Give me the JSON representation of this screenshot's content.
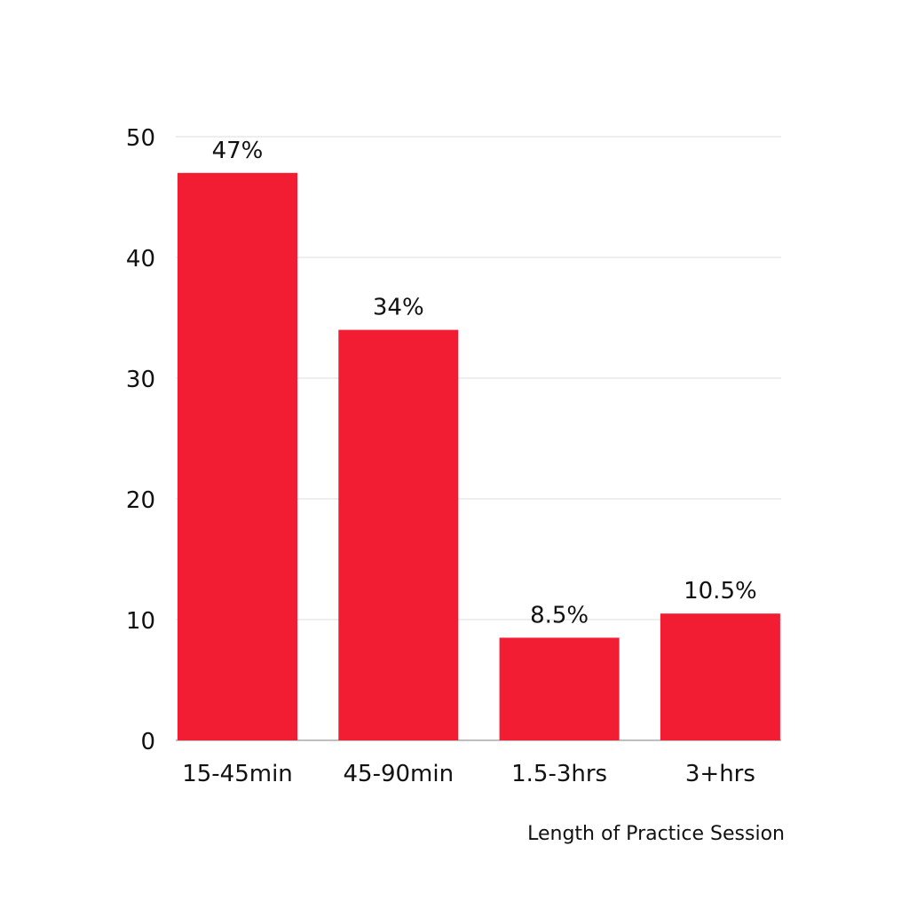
{
  "chart_data": {
    "type": "bar",
    "categories": [
      "15-45min",
      "45-90min",
      "1.5-3hrs",
      "3+hrs"
    ],
    "values": [
      47,
      34,
      8.5,
      10.5
    ],
    "data_labels": [
      "47%",
      "34%",
      "8.5%",
      "10.5%"
    ],
    "title": "",
    "xlabel": "Length of Practice Session",
    "ylabel": "",
    "ylim": [
      0,
      50
    ],
    "yticks": [
      "0",
      "10",
      "20",
      "30",
      "40",
      "50"
    ],
    "grid": true,
    "bar_color": "#f21c33",
    "grid_color": "#dddddd",
    "axis_color": "#aaaaaa"
  }
}
